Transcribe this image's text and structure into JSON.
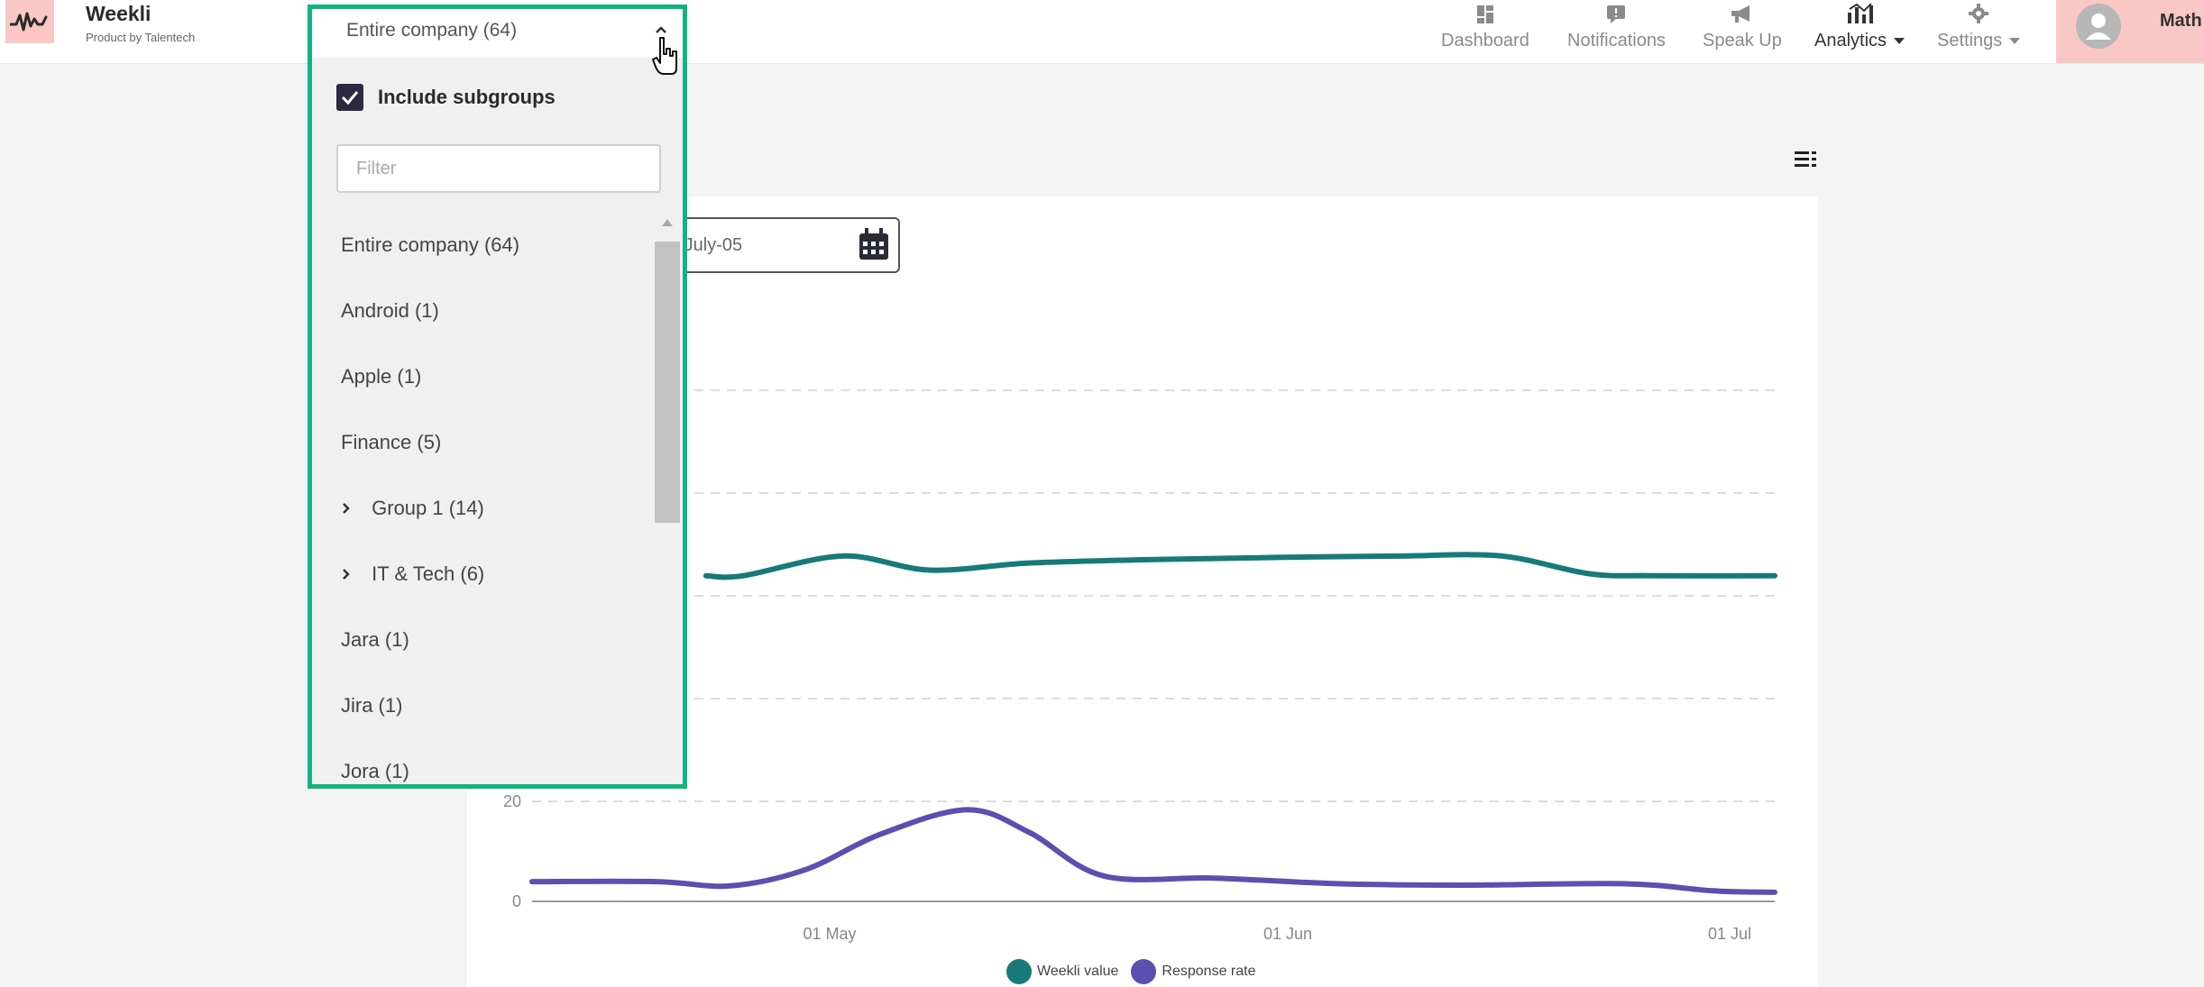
{
  "brand": {
    "name": "Weekli",
    "tagline": "Product by Talentech"
  },
  "nav": {
    "items": [
      {
        "label": "Dashboard",
        "icon": "dashboard-icon"
      },
      {
        "label": "Notifications",
        "icon": "notifications-icon"
      },
      {
        "label": "Speak Up",
        "icon": "megaphone-icon"
      },
      {
        "label": "Analytics",
        "icon": "analytics-icon",
        "dropdown": true,
        "active": true
      },
      {
        "label": "Settings",
        "icon": "gear-icon",
        "dropdown": true
      }
    ],
    "user_name": "Math"
  },
  "group_dropdown": {
    "selected": "Entire company (64)",
    "include_subgroups_label": "Include subgroups",
    "include_subgroups_checked": true,
    "filter_placeholder": "Filter",
    "filter_value": "",
    "options": [
      {
        "label": "Entire company (64)",
        "expandable": false
      },
      {
        "label": "Android (1)",
        "expandable": false
      },
      {
        "label": "Apple (1)",
        "expandable": false
      },
      {
        "label": "Finance (5)",
        "expandable": false
      },
      {
        "label": "Group 1 (14)",
        "expandable": true
      },
      {
        "label": "IT & Tech (6)",
        "expandable": true
      },
      {
        "label": "Jara (1)",
        "expandable": false
      },
      {
        "label": "Jira (1)",
        "expandable": false
      },
      {
        "label": "Jora (1)",
        "expandable": false
      }
    ],
    "accent_color": "#12b382"
  },
  "date_range": {
    "visible_text": "-July-05"
  },
  "chart_data": {
    "type": "line",
    "x_tick_labels": [
      "01 May",
      "01 Jun",
      "01 Jul"
    ],
    "y_tick_labels": [
      "0",
      "20"
    ],
    "grid": "dashed horizontal",
    "legend_position": "bottom",
    "series": [
      {
        "name": "Weekli value",
        "color": "#177a78",
        "points": [
          [
            0.14,
            0.538
          ],
          [
            0.17,
            0.538
          ],
          [
            0.25,
            0.51
          ],
          [
            0.32,
            0.53
          ],
          [
            0.4,
            0.52
          ],
          [
            0.5,
            0.515
          ],
          [
            0.6,
            0.512
          ],
          [
            0.7,
            0.51
          ],
          [
            0.78,
            0.51
          ],
          [
            0.85,
            0.535
          ],
          [
            0.9,
            0.538
          ],
          [
            1.0,
            0.538
          ]
        ]
      },
      {
        "name": "Response rate",
        "color": "#5b4fb0",
        "points": [
          [
            0.0,
            0.972
          ],
          [
            0.1,
            0.972
          ],
          [
            0.16,
            0.978
          ],
          [
            0.22,
            0.955
          ],
          [
            0.28,
            0.905
          ],
          [
            0.35,
            0.87
          ],
          [
            0.4,
            0.902
          ],
          [
            0.46,
            0.964
          ],
          [
            0.55,
            0.967
          ],
          [
            0.65,
            0.975
          ],
          [
            0.75,
            0.977
          ],
          [
            0.88,
            0.975
          ],
          [
            0.95,
            0.985
          ],
          [
            1.0,
            0.987
          ]
        ]
      }
    ]
  }
}
